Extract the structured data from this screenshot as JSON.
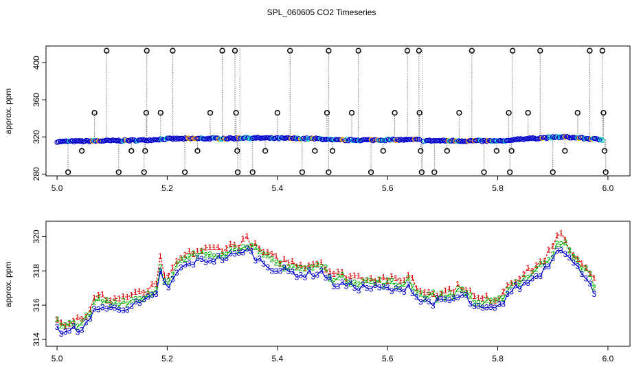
{
  "title": "SPL_060605  CO2 Timeseries",
  "colors": {
    "ch1": "#e00000",
    "ch2": "#00b000",
    "ch3": "#0000cc",
    "cyan": "#00c8c8",
    "orange": "#ff9900",
    "axis": "#000000",
    "spike": "#777777"
  },
  "chart_data": [
    {
      "type": "scatter",
      "name": "top",
      "title": "SPL_060605  CO2 Timeseries",
      "xlabel": "",
      "ylabel": "approx. ppm",
      "xlim": [
        4.98,
        6.04
      ],
      "ylim": [
        278,
        418
      ],
      "xticks": [
        5.0,
        5.2,
        5.4,
        5.6,
        5.8,
        6.0
      ],
      "xtick_labels": [
        "5.0",
        "5.2",
        "5.4",
        "5.6",
        "5.8",
        "6.0"
      ],
      "yticks": [
        280,
        320,
        360,
        400
      ],
      "ytick_labels": [
        "280",
        "320",
        "360",
        "400"
      ],
      "baseline_segments": [
        {
          "x": [
            5.0,
            5.16,
            5.2,
            5.33
          ],
          "y": [
            315,
            316.5,
            318,
            318.5
          ]
        },
        {
          "x": [
            5.33,
            5.48,
            5.5,
            5.66
          ],
          "y": [
            319,
            318,
            316.5,
            317
          ]
        },
        {
          "x": [
            5.665,
            5.82,
            5.83,
            5.92,
            5.99
          ],
          "y": [
            316,
            315.5,
            317.5,
            320,
            317
          ]
        }
      ],
      "outliers": [
        {
          "x": 5.02,
          "y": 282
        },
        {
          "x": 5.045,
          "y": 305
        },
        {
          "x": 5.068,
          "y": 346
        },
        {
          "x": 5.09,
          "y": 413
        },
        {
          "x": 5.112,
          "y": 282
        },
        {
          "x": 5.135,
          "y": 305
        },
        {
          "x": 5.158,
          "y": 282
        },
        {
          "x": 5.16,
          "y": 305
        },
        {
          "x": 5.162,
          "y": 346
        },
        {
          "x": 5.163,
          "y": 413
        },
        {
          "x": 5.188,
          "y": 346
        },
        {
          "x": 5.21,
          "y": 413
        },
        {
          "x": 5.232,
          "y": 282
        },
        {
          "x": 5.255,
          "y": 305
        },
        {
          "x": 5.278,
          "y": 346
        },
        {
          "x": 5.3,
          "y": 413
        },
        {
          "x": 5.323,
          "y": 413
        },
        {
          "x": 5.325,
          "y": 346
        },
        {
          "x": 5.327,
          "y": 305
        },
        {
          "x": 5.328,
          "y": 282
        },
        {
          "x": 5.355,
          "y": 282
        },
        {
          "x": 5.378,
          "y": 305
        },
        {
          "x": 5.4,
          "y": 346
        },
        {
          "x": 5.423,
          "y": 413
        },
        {
          "x": 5.445,
          "y": 282
        },
        {
          "x": 5.468,
          "y": 305
        },
        {
          "x": 5.49,
          "y": 346
        },
        {
          "x": 5.493,
          "y": 413
        },
        {
          "x": 5.493,
          "y": 282
        },
        {
          "x": 5.5,
          "y": 305
        },
        {
          "x": 5.535,
          "y": 346
        },
        {
          "x": 5.547,
          "y": 413
        },
        {
          "x": 5.57,
          "y": 282
        },
        {
          "x": 5.592,
          "y": 305
        },
        {
          "x": 5.613,
          "y": 346
        },
        {
          "x": 5.636,
          "y": 413
        },
        {
          "x": 5.657,
          "y": 413
        },
        {
          "x": 5.658,
          "y": 346
        },
        {
          "x": 5.66,
          "y": 305
        },
        {
          "x": 5.662,
          "y": 282
        },
        {
          "x": 5.685,
          "y": 282
        },
        {
          "x": 5.708,
          "y": 305
        },
        {
          "x": 5.73,
          "y": 346
        },
        {
          "x": 5.753,
          "y": 413
        },
        {
          "x": 5.775,
          "y": 282
        },
        {
          "x": 5.798,
          "y": 305
        },
        {
          "x": 5.82,
          "y": 346
        },
        {
          "x": 5.822,
          "y": 282
        },
        {
          "x": 5.825,
          "y": 305
        },
        {
          "x": 5.827,
          "y": 413
        },
        {
          "x": 5.855,
          "y": 346
        },
        {
          "x": 5.877,
          "y": 413
        },
        {
          "x": 5.9,
          "y": 282
        },
        {
          "x": 5.922,
          "y": 305
        },
        {
          "x": 5.945,
          "y": 346
        },
        {
          "x": 5.967,
          "y": 413
        },
        {
          "x": 5.99,
          "y": 413
        },
        {
          "x": 5.992,
          "y": 346
        },
        {
          "x": 5.994,
          "y": 305
        },
        {
          "x": 5.996,
          "y": 282
        }
      ]
    },
    {
      "type": "line",
      "name": "bottom",
      "xlabel": "",
      "ylabel": "approx. ppm",
      "xlim": [
        4.98,
        6.04
      ],
      "ylim": [
        313.6,
        320.9
      ],
      "xticks": [
        5.0,
        5.2,
        5.4,
        5.6,
        5.8,
        6.0
      ],
      "xtick_labels": [
        "5.0",
        "5.2",
        "5.4",
        "5.6",
        "5.8",
        "6.0"
      ],
      "yticks": [
        314,
        316,
        318,
        320
      ],
      "ytick_labels": [
        "314",
        "316",
        "318",
        "320"
      ],
      "trend": {
        "x": [
          5.0,
          5.01,
          5.03,
          5.05,
          5.06,
          5.07,
          5.1,
          5.15,
          5.18,
          5.19,
          5.195,
          5.2,
          5.22,
          5.25,
          5.3,
          5.33,
          5.34,
          5.37,
          5.4,
          5.45,
          5.48,
          5.5,
          5.55,
          5.6,
          5.62,
          5.64,
          5.65,
          5.66,
          5.7,
          5.74,
          5.76,
          5.8,
          5.82,
          5.85,
          5.88,
          5.9,
          5.91,
          5.92,
          5.94,
          5.96,
          5.98
        ],
        "y": [
          315.0,
          314.5,
          314.8,
          315.0,
          315.3,
          316.2,
          316.0,
          316.3,
          316.8,
          318.8,
          317.5,
          317.0,
          318.3,
          318.8,
          319.0,
          319.2,
          319.6,
          318.8,
          318.3,
          318.0,
          318.2,
          317.5,
          317.3,
          317.2,
          317.0,
          317.5,
          316.8,
          316.5,
          316.4,
          316.8,
          316.0,
          316.0,
          317.0,
          317.5,
          318.2,
          319.0,
          319.8,
          319.5,
          318.5,
          318.0,
          316.8
        ]
      },
      "series": [
        {
          "name": "1",
          "marker": "1",
          "offset": 0.35
        },
        {
          "name": "2",
          "marker": "2",
          "offset": 0.1
        },
        {
          "name": "3",
          "marker": "3",
          "offset": -0.25
        }
      ]
    }
  ]
}
